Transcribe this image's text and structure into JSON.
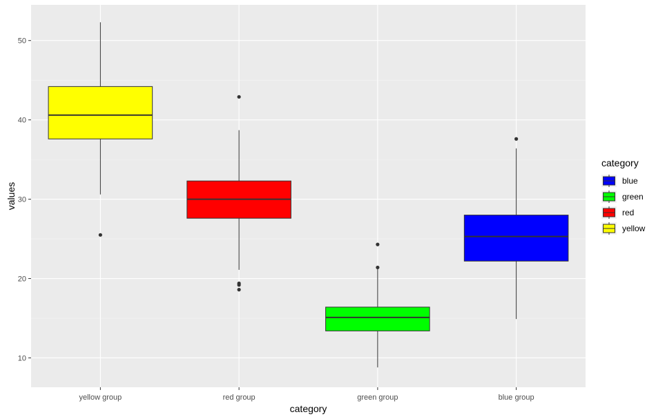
{
  "chart_data": {
    "type": "boxplot",
    "xlabel": "category",
    "ylabel": "values",
    "ylim": [
      6.3,
      54.5
    ],
    "yticks": [
      10,
      20,
      30,
      40,
      50
    ],
    "grid": true,
    "legend": {
      "title": "category",
      "placement": "right",
      "items": [
        {
          "label": "blue",
          "color": "#0000ff"
        },
        {
          "label": "green",
          "color": "#00ff00"
        },
        {
          "label": "red",
          "color": "#ff0000"
        },
        {
          "label": "yellow",
          "color": "#ffff00"
        }
      ]
    },
    "categories": [
      "yellow group",
      "red group",
      "green group",
      "blue group"
    ],
    "boxes": [
      {
        "category": "yellow group",
        "fill": "#ffff00",
        "whisker_low": 30.6,
        "q1": 37.6,
        "median": 40.6,
        "q3": 44.2,
        "whisker_high": 52.3,
        "outliers": [
          25.5
        ]
      },
      {
        "category": "red group",
        "fill": "#ff0000",
        "whisker_low": 21.1,
        "q1": 27.6,
        "median": 30.0,
        "q3": 32.3,
        "whisker_high": 38.7,
        "outliers": [
          42.9,
          19.4,
          19.2,
          18.6
        ]
      },
      {
        "category": "green group",
        "fill": "#00ff00",
        "whisker_low": 8.8,
        "q1": 13.4,
        "median": 15.1,
        "q3": 16.4,
        "whisker_high": 21.2,
        "outliers": [
          24.3,
          21.4
        ]
      },
      {
        "category": "blue group",
        "fill": "#0000ff",
        "whisker_low": 14.9,
        "q1": 22.2,
        "median": 25.3,
        "q3": 28.0,
        "whisker_high": 36.4,
        "outliers": [
          37.6
        ]
      }
    ]
  }
}
